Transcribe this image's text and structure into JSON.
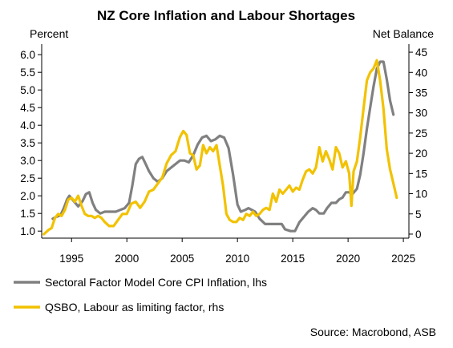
{
  "chart_data": {
    "type": "line",
    "title": "NZ Core Inflation and Labour Shortages",
    "y_left_label": "Percent",
    "y_right_label": "Net Balance",
    "source": "Source: Macrobond, ASB",
    "xlim": [
      1992.3,
      2025.5
    ],
    "ylim_left": [
      0.8,
      6.3
    ],
    "ylim_right": [
      -1,
      47
    ],
    "x_ticks": [
      1995,
      2000,
      2005,
      2010,
      2015,
      2020,
      2025
    ],
    "x_tick_labels": [
      "1995",
      "2000",
      "2005",
      "2010",
      "2015",
      "2020",
      "2025"
    ],
    "y_left_ticks": [
      1.0,
      1.5,
      2.0,
      2.5,
      3.0,
      3.5,
      4.0,
      4.5,
      5.0,
      5.5,
      6.0
    ],
    "y_left_tick_labels": [
      "1.0",
      "1.5",
      "2.0",
      "2.5",
      "3.0",
      "3.5",
      "4.0",
      "4.5",
      "5.0",
      "5.5",
      "6.0"
    ],
    "y_right_ticks": [
      0,
      5,
      10,
      15,
      20,
      25,
      30,
      35,
      40,
      45
    ],
    "y_right_tick_labels": [
      "0",
      "5",
      "10",
      "15",
      "20",
      "25",
      "30",
      "35",
      "40",
      "45"
    ],
    "legend_position": "bottom",
    "grid": false,
    "series": [
      {
        "name": "Sectoral Factor Model Core CPI Inflation, lhs",
        "axis": "left",
        "color": "#808080",
        "points": [
          [
            1993.3,
            1.35
          ],
          [
            1993.6,
            1.4
          ],
          [
            1994.0,
            1.45
          ],
          [
            1994.3,
            1.65
          ],
          [
            1994.6,
            1.9
          ],
          [
            1994.8,
            2.0
          ],
          [
            1995.2,
            1.85
          ],
          [
            1995.6,
            1.7
          ],
          [
            1996.0,
            1.85
          ],
          [
            1996.3,
            2.05
          ],
          [
            1996.6,
            2.1
          ],
          [
            1996.9,
            1.8
          ],
          [
            1997.2,
            1.6
          ],
          [
            1997.6,
            1.5
          ],
          [
            1998.0,
            1.55
          ],
          [
            1998.5,
            1.55
          ],
          [
            1999.0,
            1.55
          ],
          [
            1999.4,
            1.6
          ],
          [
            1999.8,
            1.65
          ],
          [
            2000.2,
            1.8
          ],
          [
            2000.5,
            2.3
          ],
          [
            2000.8,
            2.9
          ],
          [
            2001.1,
            3.05
          ],
          [
            2001.4,
            3.1
          ],
          [
            2001.7,
            2.9
          ],
          [
            2002.0,
            2.7
          ],
          [
            2002.4,
            2.5
          ],
          [
            2002.8,
            2.4
          ],
          [
            2003.2,
            2.5
          ],
          [
            2003.6,
            2.7
          ],
          [
            2004.0,
            2.8
          ],
          [
            2004.4,
            2.9
          ],
          [
            2004.8,
            3.0
          ],
          [
            2005.2,
            3.0
          ],
          [
            2005.6,
            2.95
          ],
          [
            2006.0,
            3.15
          ],
          [
            2006.4,
            3.45
          ],
          [
            2006.8,
            3.65
          ],
          [
            2007.2,
            3.7
          ],
          [
            2007.6,
            3.55
          ],
          [
            2008.0,
            3.6
          ],
          [
            2008.4,
            3.7
          ],
          [
            2008.8,
            3.65
          ],
          [
            2009.2,
            3.35
          ],
          [
            2009.6,
            2.6
          ],
          [
            2010.0,
            1.75
          ],
          [
            2010.3,
            1.55
          ],
          [
            2010.7,
            1.6
          ],
          [
            2011.0,
            1.65
          ],
          [
            2011.3,
            1.6
          ],
          [
            2011.6,
            1.55
          ],
          [
            2012.0,
            1.35
          ],
          [
            2012.5,
            1.2
          ],
          [
            2013.0,
            1.2
          ],
          [
            2013.5,
            1.2
          ],
          [
            2014.0,
            1.2
          ],
          [
            2014.3,
            1.05
          ],
          [
            2014.8,
            1.0
          ],
          [
            2015.2,
            1.0
          ],
          [
            2015.6,
            1.25
          ],
          [
            2016.0,
            1.4
          ],
          [
            2016.4,
            1.55
          ],
          [
            2016.8,
            1.65
          ],
          [
            2017.1,
            1.6
          ],
          [
            2017.4,
            1.5
          ],
          [
            2017.8,
            1.5
          ],
          [
            2018.1,
            1.65
          ],
          [
            2018.5,
            1.8
          ],
          [
            2018.9,
            1.8
          ],
          [
            2019.2,
            1.9
          ],
          [
            2019.5,
            1.95
          ],
          [
            2019.8,
            2.1
          ],
          [
            2020.1,
            2.1
          ],
          [
            2020.4,
            2.05
          ],
          [
            2020.8,
            2.2
          ],
          [
            2021.1,
            2.6
          ],
          [
            2021.4,
            3.2
          ],
          [
            2021.7,
            3.9
          ],
          [
            2022.0,
            4.5
          ],
          [
            2022.3,
            5.1
          ],
          [
            2022.6,
            5.6
          ],
          [
            2022.9,
            5.8
          ],
          [
            2023.2,
            5.8
          ],
          [
            2023.5,
            5.3
          ],
          [
            2023.8,
            4.7
          ],
          [
            2024.1,
            4.3
          ]
        ]
      },
      {
        "name": "QSBO, Labour as limiting factor, rhs",
        "axis": "right",
        "color": "#f2c200",
        "points": [
          [
            1992.5,
            0.0
          ],
          [
            1992.9,
            1.0
          ],
          [
            1993.2,
            1.5
          ],
          [
            1993.5,
            4.0
          ],
          [
            1993.8,
            5.0
          ],
          [
            1994.1,
            4.5
          ],
          [
            1994.4,
            6.0
          ],
          [
            1994.7,
            8.5
          ],
          [
            1995.0,
            9.0
          ],
          [
            1995.3,
            8.0
          ],
          [
            1995.6,
            9.5
          ],
          [
            1995.9,
            7.0
          ],
          [
            1996.2,
            5.0
          ],
          [
            1996.5,
            4.5
          ],
          [
            1996.8,
            4.5
          ],
          [
            1997.1,
            4.0
          ],
          [
            1997.4,
            4.5
          ],
          [
            1997.7,
            4.0
          ],
          [
            1998.0,
            3.0
          ],
          [
            1998.4,
            2.0
          ],
          [
            1998.8,
            2.0
          ],
          [
            1999.2,
            3.5
          ],
          [
            1999.6,
            5.0
          ],
          [
            2000.0,
            5.0
          ],
          [
            2000.4,
            7.5
          ],
          [
            2000.8,
            8.0
          ],
          [
            2001.2,
            6.5
          ],
          [
            2001.6,
            8.0
          ],
          [
            2002.0,
            10.5
          ],
          [
            2002.4,
            11.0
          ],
          [
            2002.8,
            12.5
          ],
          [
            2003.2,
            14.0
          ],
          [
            2003.6,
            17.5
          ],
          [
            2004.0,
            19.5
          ],
          [
            2004.4,
            20.5
          ],
          [
            2004.8,
            24.0
          ],
          [
            2005.1,
            25.5
          ],
          [
            2005.4,
            24.5
          ],
          [
            2005.7,
            20.0
          ],
          [
            2006.0,
            19.5
          ],
          [
            2006.3,
            16.0
          ],
          [
            2006.6,
            17.0
          ],
          [
            2006.9,
            22.0
          ],
          [
            2007.2,
            20.0
          ],
          [
            2007.5,
            21.5
          ],
          [
            2007.8,
            20.5
          ],
          [
            2008.1,
            22.0
          ],
          [
            2008.4,
            17.0
          ],
          [
            2008.7,
            12.0
          ],
          [
            2009.0,
            5.0
          ],
          [
            2009.3,
            3.5
          ],
          [
            2009.6,
            3.0
          ],
          [
            2009.9,
            3.0
          ],
          [
            2010.2,
            4.0
          ],
          [
            2010.5,
            3.5
          ],
          [
            2010.8,
            5.0
          ],
          [
            2011.1,
            4.5
          ],
          [
            2011.4,
            5.5
          ],
          [
            2011.7,
            4.5
          ],
          [
            2012.0,
            5.0
          ],
          [
            2012.3,
            6.0
          ],
          [
            2012.6,
            6.5
          ],
          [
            2012.9,
            6.0
          ],
          [
            2013.2,
            10.0
          ],
          [
            2013.5,
            8.0
          ],
          [
            2013.8,
            11.0
          ],
          [
            2014.1,
            10.0
          ],
          [
            2014.4,
            11.0
          ],
          [
            2014.7,
            12.0
          ],
          [
            2015.0,
            10.5
          ],
          [
            2015.3,
            11.5
          ],
          [
            2015.6,
            11.0
          ],
          [
            2015.9,
            13.5
          ],
          [
            2016.2,
            15.5
          ],
          [
            2016.5,
            16.0
          ],
          [
            2016.8,
            15.0
          ],
          [
            2017.1,
            16.5
          ],
          [
            2017.4,
            21.5
          ],
          [
            2017.7,
            18.0
          ],
          [
            2018.0,
            20.5
          ],
          [
            2018.3,
            18.5
          ],
          [
            2018.6,
            16.0
          ],
          [
            2018.9,
            21.5
          ],
          [
            2019.2,
            20.0
          ],
          [
            2019.5,
            16.5
          ],
          [
            2019.8,
            18.0
          ],
          [
            2020.1,
            15.0
          ],
          [
            2020.3,
            7.0
          ],
          [
            2020.5,
            15.5
          ],
          [
            2020.8,
            18.0
          ],
          [
            2021.1,
            24.0
          ],
          [
            2021.4,
            31.0
          ],
          [
            2021.7,
            38.0
          ],
          [
            2022.0,
            40.0
          ],
          [
            2022.3,
            41.0
          ],
          [
            2022.6,
            43.0
          ],
          [
            2022.9,
            38.0
          ],
          [
            2023.2,
            31.0
          ],
          [
            2023.5,
            21.0
          ],
          [
            2023.8,
            16.0
          ],
          [
            2024.1,
            12.5
          ],
          [
            2024.4,
            9.0
          ]
        ]
      }
    ]
  }
}
